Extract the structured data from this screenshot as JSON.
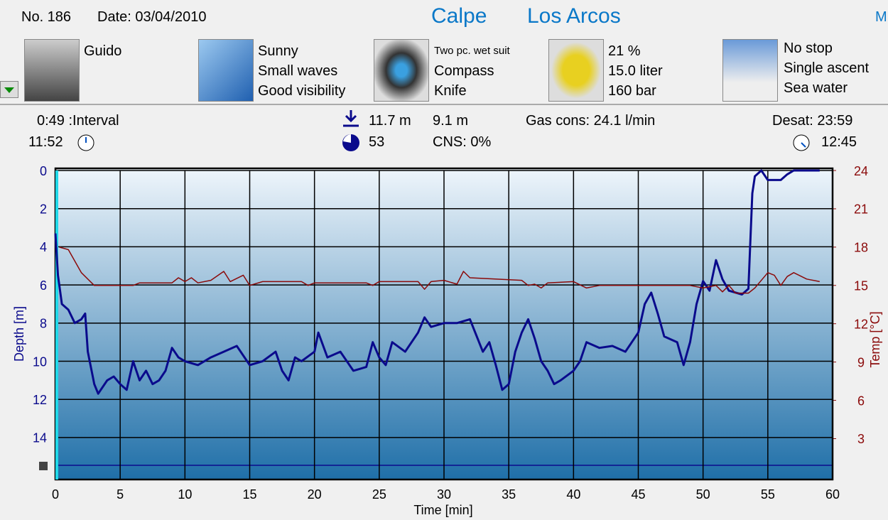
{
  "header": {
    "number": "No. 186",
    "date": "Date: 03/04/2010",
    "site": "Calpe",
    "location": "Los Arcos",
    "truncated": "M"
  },
  "info": {
    "buddy": [
      "Guido"
    ],
    "conditions": [
      "Sunny",
      "Small waves",
      "Good visibility"
    ],
    "equipment": [
      "Two pc. wet suit",
      "Compass",
      "Knife"
    ],
    "gas": [
      "21 %",
      "15.0 liter",
      "160 bar"
    ],
    "dive_type": [
      "No stop",
      "Single ascent",
      "Sea water"
    ]
  },
  "stats": {
    "interval": "0:49 :Interval",
    "time_in": "11:52",
    "max_depth": "11.7 m",
    "avg_depth": "9.1 m",
    "duration": "53",
    "cns": "CNS:  0%",
    "gas_cons": "Gas cons: 24.1 l/min",
    "desat": "Desat: 23:59",
    "time_out": "12:45"
  },
  "chart_data": {
    "type": "line",
    "xlabel": "Time [min]",
    "ylabel": "Depth [m]",
    "y2label": "Temp [°C]",
    "xlim": [
      0,
      60
    ],
    "xticks": [
      0,
      5,
      10,
      15,
      20,
      25,
      30,
      35,
      40,
      45,
      50,
      55,
      60
    ],
    "ylim": [
      0,
      16.2
    ],
    "y_inverted": true,
    "yticks": [
      0,
      2,
      4,
      6,
      8,
      10,
      12,
      14
    ],
    "y2lim": [
      -0.2,
      24
    ],
    "y2ticks": [
      3,
      6,
      9,
      12,
      15,
      18,
      21,
      24
    ],
    "grid": true,
    "series": [
      {
        "color": "#0a0a8c",
        "x": [
          0,
          0.2,
          0.5,
          1,
          1.5,
          2,
          2.3,
          2.5,
          3,
          3.3,
          4,
          4.5,
          5,
          5.5,
          6,
          6.5,
          7,
          7.5,
          8,
          8.5,
          9,
          9.5,
          10,
          11,
          12,
          13,
          14,
          15,
          16,
          17,
          17.5,
          18,
          18.5,
          19,
          20,
          20.3,
          21,
          22,
          23,
          24,
          24.5,
          25,
          25.5,
          26,
          27,
          28,
          28.5,
          29,
          30,
          31,
          32,
          33,
          33.5,
          34,
          34.5,
          35,
          35.5,
          36,
          36.5,
          37,
          37.5,
          38,
          38.5,
          39,
          40,
          40.5,
          41,
          42,
          43,
          44,
          45,
          45.5,
          46,
          46.5,
          47,
          48,
          48.5,
          49,
          49.5,
          50,
          50.5,
          51,
          51.5,
          52,
          53,
          53.5,
          53.8,
          54,
          54.5,
          55,
          56,
          56.5,
          57,
          59
        ],
        "values": [
          3.3,
          5.5,
          7,
          7.3,
          8,
          7.8,
          7.5,
          9.5,
          11.2,
          11.7,
          11,
          10.8,
          11.2,
          11.5,
          10,
          11,
          10.5,
          11.2,
          11,
          10.5,
          9.3,
          9.8,
          10,
          10.2,
          9.8,
          9.5,
          9.2,
          10.2,
          10,
          9.5,
          10.5,
          11,
          9.8,
          10,
          9.5,
          8.5,
          9.8,
          9.5,
          10.5,
          10.3,
          9,
          9.8,
          10.2,
          9,
          9.5,
          8.5,
          7.7,
          8.2,
          8,
          8,
          7.8,
          9.5,
          9,
          10.2,
          11.5,
          11.2,
          9.5,
          8.5,
          7.8,
          8.8,
          10,
          10.5,
          11.2,
          11,
          10.5,
          10,
          9,
          9.3,
          9.2,
          9.5,
          8.5,
          7,
          6.4,
          7.5,
          8.7,
          9,
          10.2,
          9,
          7,
          5.8,
          6.3,
          4.7,
          5.7,
          6.3,
          6.5,
          6.2,
          1.2,
          0.3,
          0,
          0.5,
          0.5,
          0.2,
          0,
          0
        ]
      },
      {
        "color": "#8b0a0a",
        "axis": "y2",
        "x": [
          0.3,
          1,
          2,
          3,
          6,
          6.5,
          9,
          9.5,
          10,
          10.5,
          11,
          12,
          13,
          13.5,
          14.5,
          15,
          16,
          19,
          19.5,
          20,
          24,
          24.5,
          25,
          28,
          28.5,
          29,
          30,
          31,
          31.5,
          32,
          36,
          36.5,
          37,
          37.5,
          38,
          40,
          41,
          42,
          45,
          49,
          50,
          51,
          51.5,
          52,
          52.5,
          53.5,
          54,
          55,
          55.5,
          56,
          56.5,
          57,
          58,
          59
        ],
        "values": [
          18,
          17.8,
          16,
          15,
          15,
          15.2,
          15.2,
          15.6,
          15.3,
          15.6,
          15.2,
          15.4,
          16.1,
          15.3,
          15.8,
          15,
          15.3,
          15.3,
          15,
          15.2,
          15.2,
          15,
          15.3,
          15.3,
          14.7,
          15.3,
          15.4,
          15.1,
          16.1,
          15.6,
          15.4,
          15,
          15.1,
          14.8,
          15.2,
          15.3,
          14.8,
          15,
          15,
          15,
          14.8,
          15,
          14.5,
          15,
          14.4,
          14.4,
          14.8,
          16,
          15.8,
          15,
          15.7,
          16,
          15.5,
          15.3
        ]
      }
    ]
  }
}
